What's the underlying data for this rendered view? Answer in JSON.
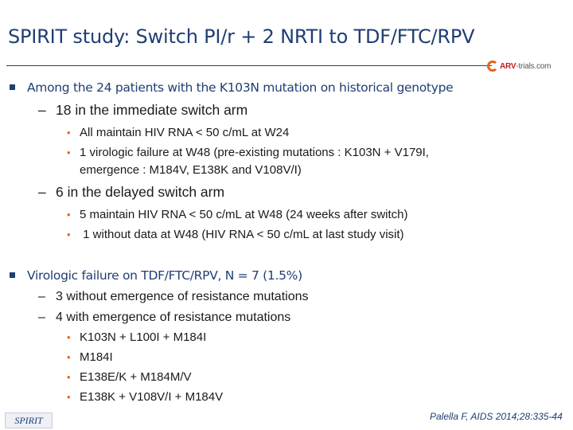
{
  "title": "SPIRIT study: Switch PI/r + 2 NRTI to TDF/FTC/RPV",
  "logo": {
    "brand": "ARV",
    "suffix": "-trials.com"
  },
  "section1": {
    "heading": "Among the 24 patients with the K103N mutation on historical genotype",
    "sub1": {
      "label": "18 in the immediate switch arm",
      "items": [
        "All maintain HIV RNA < 50 c/mL at W24",
        "1 virologic failure at W48 (pre-existing mutations : K103N + V179I,",
        "emergence : M184V, E138K and V108V/I)"
      ]
    },
    "sub2": {
      "label": "6 in the delayed switch arm",
      "items": [
        "5 maintain HIV RNA < 50 c/mL at W48 (24 weeks after switch)",
        " 1 without data at W48 (HIV RNA < 50 c/mL at last study visit)"
      ]
    }
  },
  "section2": {
    "heading": "Virologic failure on TDF/FTC/RPV, N = 7 (1.5%)",
    "sub1": {
      "label": "3 without emergence of resistance mutations"
    },
    "sub2": {
      "label": "4 with emergence of resistance mutations",
      "items": [
        "K103N + L100I + M184I",
        "M184I",
        "E138E/K + M184M/V",
        "E138K + V108V/I + M184V"
      ]
    }
  },
  "footer": {
    "tag": "SPIRIT",
    "citation": "Palella F, AIDS 2014;28:335-44"
  },
  "colors": {
    "accent": "#1f3e73",
    "bullet": "#e2661a"
  }
}
